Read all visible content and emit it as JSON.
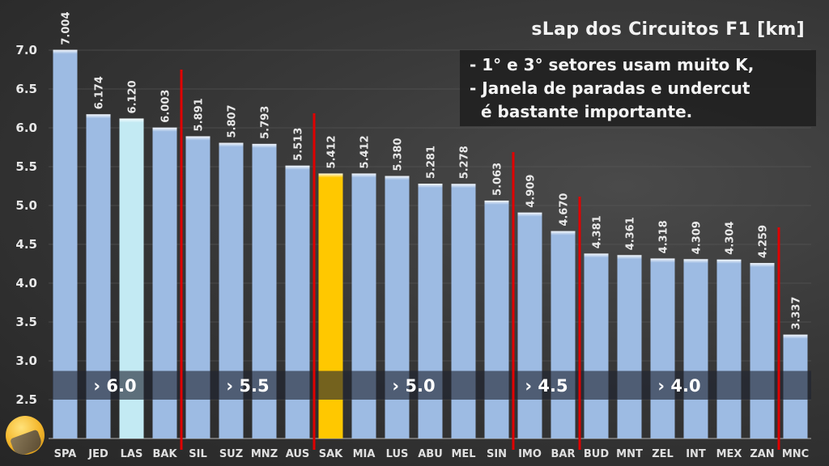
{
  "chart_data": {
    "type": "bar",
    "title": "sLap dos Circuitos F1 [km]",
    "xlabel": "",
    "ylabel": "",
    "ylim": [
      2.0,
      7.0
    ],
    "yticks": [
      "2.5",
      "3.0",
      "3.5",
      "4.0",
      "4.5",
      "5.0",
      "5.5",
      "6.0",
      "6.5",
      "7.0"
    ],
    "grid": true,
    "categories": [
      "SPA",
      "JED",
      "LAS",
      "BAK",
      "SIL",
      "SUZ",
      "MNZ",
      "AUS",
      "SAK",
      "MIA",
      "LUS",
      "ABU",
      "MEL",
      "SIN",
      "IMO",
      "BAR",
      "BUD",
      "MNT",
      "ZEL",
      "INT",
      "MEX",
      "ZAN",
      "MNC"
    ],
    "values": [
      7.004,
      6.174,
      6.12,
      6.003,
      5.891,
      5.807,
      5.793,
      5.513,
      5.412,
      5.412,
      5.38,
      5.281,
      5.278,
      5.063,
      4.909,
      4.67,
      4.381,
      4.361,
      4.318,
      4.309,
      4.304,
      4.259,
      3.337
    ],
    "value_labels": [
      "7.004",
      "6.174",
      "6.120",
      "6.003",
      "5.891",
      "5.807",
      "5.793",
      "5.513",
      "5.412",
      "5.412",
      "5.380",
      "5.281",
      "5.278",
      "5.063",
      "4.909",
      "4.670",
      "4.381",
      "4.361",
      "4.318",
      "4.309",
      "4.304",
      "4.259",
      "3.337"
    ],
    "highlight": {
      "LAS": "#c3eaf3",
      "SAK": "#ffc800"
    },
    "bar_color": "#9dbbe3",
    "divider_color": "#e00000",
    "dividers_after": [
      "BAK",
      "AUS",
      "SIN",
      "BAR",
      "ZAN"
    ],
    "groups": [
      {
        "label": "› 6.0",
        "from": "SPA",
        "to": "BAK"
      },
      {
        "label": "› 5.5",
        "from": "SIL",
        "to": "AUS"
      },
      {
        "label": "› 5.0",
        "from": "SAK",
        "to": "SIN"
      },
      {
        "label": "› 4.5",
        "from": "IMO",
        "to": "BAR"
      },
      {
        "label": "› 4.0",
        "from": "BUD",
        "to": "ZAN"
      }
    ],
    "annotations": [
      "- 1° e 3° setores usam muito K,",
      "- Janela de paradas e undercut",
      "  é bastante importante."
    ]
  }
}
